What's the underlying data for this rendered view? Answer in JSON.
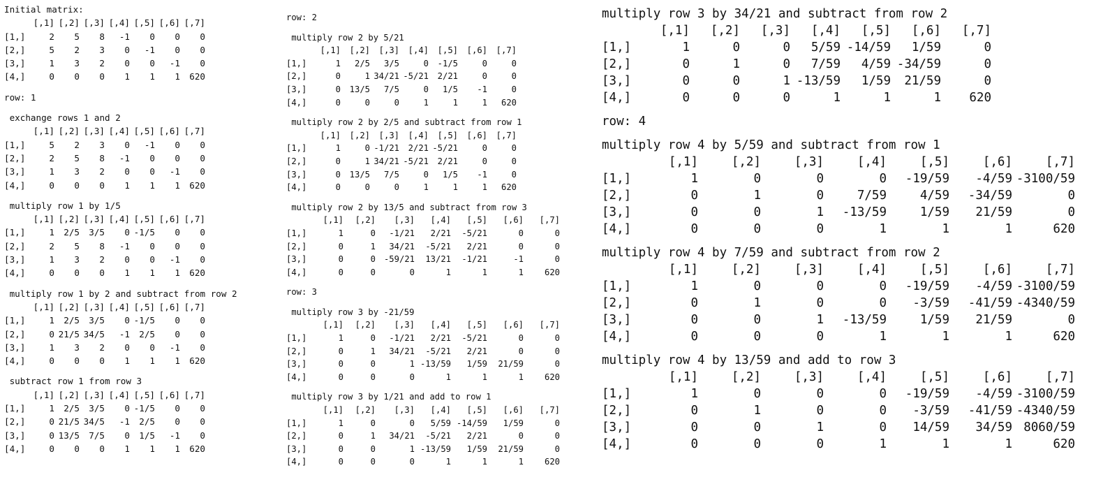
{
  "columns": [
    {
      "sections": [
        {
          "type": "matrix",
          "title": "Initial matrix:",
          "headers": [
            "[,1]",
            "[,2]",
            "[,3]",
            "[,4]",
            "[,5]",
            "[,6]",
            "[,7]"
          ],
          "rows": [
            {
              "label": "[1,]",
              "cells": [
                "2",
                "5",
                "8",
                "-1",
                "0",
                "0",
                "0"
              ]
            },
            {
              "label": "[2,]",
              "cells": [
                "5",
                "2",
                "3",
                "0",
                "-1",
                "0",
                "0"
              ]
            },
            {
              "label": "[3,]",
              "cells": [
                "1",
                "3",
                "2",
                "0",
                "0",
                "-1",
                "0"
              ]
            },
            {
              "label": "[4,]",
              "cells": [
                "0",
                "0",
                "0",
                "1",
                "1",
                "1",
                "620"
              ]
            }
          ]
        },
        {
          "type": "row",
          "text": "row: 1"
        },
        {
          "type": "matrix",
          "title": " exchange rows 1 and 2",
          "headers": [
            "[,1]",
            "[,2]",
            "[,3]",
            "[,4]",
            "[,5]",
            "[,6]",
            "[,7]"
          ],
          "rows": [
            {
              "label": "[1,]",
              "cells": [
                "5",
                "2",
                "3",
                "0",
                "-1",
                "0",
                "0"
              ]
            },
            {
              "label": "[2,]",
              "cells": [
                "2",
                "5",
                "8",
                "-1",
                "0",
                "0",
                "0"
              ]
            },
            {
              "label": "[3,]",
              "cells": [
                "1",
                "3",
                "2",
                "0",
                "0",
                "-1",
                "0"
              ]
            },
            {
              "label": "[4,]",
              "cells": [
                "0",
                "0",
                "0",
                "1",
                "1",
                "1",
                "620"
              ]
            }
          ]
        },
        {
          "type": "matrix",
          "title": " multiply row 1 by 1/5",
          "headers": [
            "[,1]",
            "[,2]",
            "[,3]",
            "[,4]",
            "[,5]",
            "[,6]",
            "[,7]"
          ],
          "rows": [
            {
              "label": "[1,]",
              "cells": [
                "1",
                "2/5",
                "3/5",
                "0",
                "-1/5",
                "0",
                "0"
              ]
            },
            {
              "label": "[2,]",
              "cells": [
                "2",
                "5",
                "8",
                "-1",
                "0",
                "0",
                "0"
              ]
            },
            {
              "label": "[3,]",
              "cells": [
                "1",
                "3",
                "2",
                "0",
                "0",
                "-1",
                "0"
              ]
            },
            {
              "label": "[4,]",
              "cells": [
                "0",
                "0",
                "0",
                "1",
                "1",
                "1",
                "620"
              ]
            }
          ]
        },
        {
          "type": "matrix",
          "title": " multiply row 1 by 2 and subtract from row 2",
          "headers": [
            "[,1]",
            "[,2]",
            "[,3]",
            "[,4]",
            "[,5]",
            "[,6]",
            "[,7]"
          ],
          "rows": [
            {
              "label": "[1,]",
              "cells": [
                "1",
                "2/5",
                "3/5",
                "0",
                "-1/5",
                "0",
                "0"
              ]
            },
            {
              "label": "[2,]",
              "cells": [
                "0",
                "21/5",
                "34/5",
                "-1",
                "2/5",
                "0",
                "0"
              ]
            },
            {
              "label": "[3,]",
              "cells": [
                "1",
                "3",
                "2",
                "0",
                "0",
                "-1",
                "0"
              ]
            },
            {
              "label": "[4,]",
              "cells": [
                "0",
                "0",
                "0",
                "1",
                "1",
                "1",
                "620"
              ]
            }
          ]
        },
        {
          "type": "matrix",
          "title": " subtract row 1 from row 3",
          "headers": [
            "[,1]",
            "[,2]",
            "[,3]",
            "[,4]",
            "[,5]",
            "[,6]",
            "[,7]"
          ],
          "rows": [
            {
              "label": "[1,]",
              "cells": [
                "1",
                "2/5",
                "3/5",
                "0",
                "-1/5",
                "0",
                "0"
              ]
            },
            {
              "label": "[2,]",
              "cells": [
                "0",
                "21/5",
                "34/5",
                "-1",
                "2/5",
                "0",
                "0"
              ]
            },
            {
              "label": "[3,]",
              "cells": [
                "0",
                "13/5",
                "7/5",
                "0",
                "1/5",
                "-1",
                "0"
              ]
            },
            {
              "label": "[4,]",
              "cells": [
                "0",
                "0",
                "0",
                "1",
                "1",
                "1",
                "620"
              ]
            }
          ]
        }
      ]
    },
    {
      "sections": [
        {
          "type": "row",
          "text": "row: 2"
        },
        {
          "type": "matrix",
          "width": "narrow",
          "title": " multiply row 2 by 5/21",
          "headers": [
            "[,1]",
            "[,2]",
            "[,3]",
            "[,4]",
            "[,5]",
            "[,6]",
            "[,7]"
          ],
          "rows": [
            {
              "label": "[1,]",
              "cells": [
                "1",
                "2/5",
                "3/5",
                "0",
                "-1/5",
                "0",
                "0"
              ]
            },
            {
              "label": "[2,]",
              "cells": [
                "0",
                "1",
                "34/21",
                "-5/21",
                "2/21",
                "0",
                "0"
              ]
            },
            {
              "label": "[3,]",
              "cells": [
                "0",
                "13/5",
                "7/5",
                "0",
                "1/5",
                "-1",
                "0"
              ]
            },
            {
              "label": "[4,]",
              "cells": [
                "0",
                "0",
                "0",
                "1",
                "1",
                "1",
                "620"
              ]
            }
          ]
        },
        {
          "type": "matrix",
          "width": "narrow",
          "title": " multiply row 2 by 2/5 and subtract from row 1",
          "headers": [
            "[,1]",
            "[,2]",
            "[,3]",
            "[,4]",
            "[,5]",
            "[,6]",
            "[,7]"
          ],
          "rows": [
            {
              "label": "[1,]",
              "cells": [
                "1",
                "0",
                "-1/21",
                "2/21",
                "-5/21",
                "0",
                "0"
              ]
            },
            {
              "label": "[2,]",
              "cells": [
                "0",
                "1",
                "34/21",
                "-5/21",
                "2/21",
                "0",
                "0"
              ]
            },
            {
              "label": "[3,]",
              "cells": [
                "0",
                "13/5",
                "7/5",
                "0",
                "1/5",
                "-1",
                "0"
              ]
            },
            {
              "label": "[4,]",
              "cells": [
                "0",
                "0",
                "0",
                "1",
                "1",
                "1",
                "620"
              ]
            }
          ]
        },
        {
          "type": "matrix",
          "width": "wide",
          "title": " multiply row 2 by 13/5 and subtract from row 3",
          "headers": [
            "[,1]",
            "[,2]",
            "[,3]",
            "[,4]",
            "[,5]",
            "[,6]",
            "[,7]"
          ],
          "rows": [
            {
              "label": "[1,]",
              "cells": [
                "1",
                "0",
                "-1/21",
                "2/21",
                "-5/21",
                "0",
                "0"
              ]
            },
            {
              "label": "[2,]",
              "cells": [
                "0",
                "1",
                "34/21",
                "-5/21",
                "2/21",
                "0",
                "0"
              ]
            },
            {
              "label": "[3,]",
              "cells": [
                "0",
                "0",
                "-59/21",
                "13/21",
                "-1/21",
                "-1",
                "0"
              ]
            },
            {
              "label": "[4,]",
              "cells": [
                "0",
                "0",
                "0",
                "1",
                "1",
                "1",
                "620"
              ]
            }
          ]
        },
        {
          "type": "row",
          "text": "row: 3"
        },
        {
          "type": "matrix",
          "width": "wide",
          "title": " multiply row 3 by -21/59",
          "headers": [
            "[,1]",
            "[,2]",
            "[,3]",
            "[,4]",
            "[,5]",
            "[,6]",
            "[,7]"
          ],
          "rows": [
            {
              "label": "[1,]",
              "cells": [
                "1",
                "0",
                "-1/21",
                "2/21",
                "-5/21",
                "0",
                "0"
              ]
            },
            {
              "label": "[2,]",
              "cells": [
                "0",
                "1",
                "34/21",
                "-5/21",
                "2/21",
                "0",
                "0"
              ]
            },
            {
              "label": "[3,]",
              "cells": [
                "0",
                "0",
                "1",
                "-13/59",
                "1/59",
                "21/59",
                "0"
              ]
            },
            {
              "label": "[4,]",
              "cells": [
                "0",
                "0",
                "0",
                "1",
                "1",
                "1",
                "620"
              ]
            }
          ]
        },
        {
          "type": "matrix",
          "width": "wide",
          "title": " multiply row 3 by 1/21 and add to row 1",
          "headers": [
            "[,1]",
            "[,2]",
            "[,3]",
            "[,4]",
            "[,5]",
            "[,6]",
            "[,7]"
          ],
          "rows": [
            {
              "label": "[1,]",
              "cells": [
                "1",
                "0",
                "0",
                "5/59",
                "-14/59",
                "1/59",
                "0"
              ]
            },
            {
              "label": "[2,]",
              "cells": [
                "0",
                "1",
                "34/21",
                "-5/21",
                "2/21",
                "0",
                "0"
              ]
            },
            {
              "label": "[3,]",
              "cells": [
                "0",
                "0",
                "1",
                "-13/59",
                "1/59",
                "21/59",
                "0"
              ]
            },
            {
              "label": "[4,]",
              "cells": [
                "0",
                "0",
                "0",
                "1",
                "1",
                "1",
                "620"
              ]
            }
          ]
        }
      ]
    },
    {
      "sections": [
        {
          "type": "matrix",
          "width": "wide",
          "title": "multiply row 3 by 34/21 and subtract from row 2",
          "headers": [
            "[,1]",
            "[,2]",
            "[,3]",
            "[,4]",
            "[,5]",
            "[,6]",
            "[,7]"
          ],
          "rows": [
            {
              "label": "[1,]",
              "cells": [
                "1",
                "0",
                "0",
                "5/59",
                "-14/59",
                "1/59",
                "0"
              ]
            },
            {
              "label": "[2,]",
              "cells": [
                "0",
                "1",
                "0",
                "7/59",
                "4/59",
                "-34/59",
                "0"
              ]
            },
            {
              "label": "[3,]",
              "cells": [
                "0",
                "0",
                "1",
                "-13/59",
                "1/59",
                "21/59",
                "0"
              ]
            },
            {
              "label": "[4,]",
              "cells": [
                "0",
                "0",
                "0",
                "1",
                "1",
                "1",
                "620"
              ]
            }
          ]
        },
        {
          "type": "row",
          "text": "row: 4"
        },
        {
          "type": "matrix",
          "width": "wider",
          "title": "multiply row 4 by 5/59 and subtract from row 1",
          "headers": [
            "[,1]",
            "[,2]",
            "[,3]",
            "[,4]",
            "[,5]",
            "[,6]",
            "[,7]"
          ],
          "rows": [
            {
              "label": "[1,]",
              "cells": [
                "1",
                "0",
                "0",
                "0",
                "-19/59",
                "-4/59",
                "-3100/59"
              ]
            },
            {
              "label": "[2,]",
              "cells": [
                "0",
                "1",
                "0",
                "7/59",
                "4/59",
                "-34/59",
                "0"
              ]
            },
            {
              "label": "[3,]",
              "cells": [
                "0",
                "0",
                "1",
                "-13/59",
                "1/59",
                "21/59",
                "0"
              ]
            },
            {
              "label": "[4,]",
              "cells": [
                "0",
                "0",
                "0",
                "1",
                "1",
                "1",
                "620"
              ]
            }
          ]
        },
        {
          "type": "matrix",
          "width": "wider",
          "title": "multiply row 4 by 7/59 and subtract from row 2",
          "headers": [
            "[,1]",
            "[,2]",
            "[,3]",
            "[,4]",
            "[,5]",
            "[,6]",
            "[,7]"
          ],
          "rows": [
            {
              "label": "[1,]",
              "cells": [
                "1",
                "0",
                "0",
                "0",
                "-19/59",
                "-4/59",
                "-3100/59"
              ]
            },
            {
              "label": "[2,]",
              "cells": [
                "0",
                "1",
                "0",
                "0",
                "-3/59",
                "-41/59",
                "-4340/59"
              ]
            },
            {
              "label": "[3,]",
              "cells": [
                "0",
                "0",
                "1",
                "-13/59",
                "1/59",
                "21/59",
                "0"
              ]
            },
            {
              "label": "[4,]",
              "cells": [
                "0",
                "0",
                "0",
                "1",
                "1",
                "1",
                "620"
              ]
            }
          ]
        },
        {
          "type": "matrix",
          "width": "wider",
          "title": "multiply row 4 by 13/59 and add to row 3",
          "headers": [
            "[,1]",
            "[,2]",
            "[,3]",
            "[,4]",
            "[,5]",
            "[,6]",
            "[,7]"
          ],
          "rows": [
            {
              "label": "[1,]",
              "cells": [
                "1",
                "0",
                "0",
                "0",
                "-19/59",
                "-4/59",
                "-3100/59"
              ]
            },
            {
              "label": "[2,]",
              "cells": [
                "0",
                "1",
                "0",
                "0",
                "-3/59",
                "-41/59",
                "-4340/59"
              ]
            },
            {
              "label": "[3,]",
              "cells": [
                "0",
                "0",
                "1",
                "0",
                "14/59",
                "34/59",
                "8060/59"
              ]
            },
            {
              "label": "[4,]",
              "cells": [
                "0",
                "0",
                "0",
                "1",
                "1",
                "1",
                "620"
              ]
            }
          ]
        }
      ]
    }
  ]
}
